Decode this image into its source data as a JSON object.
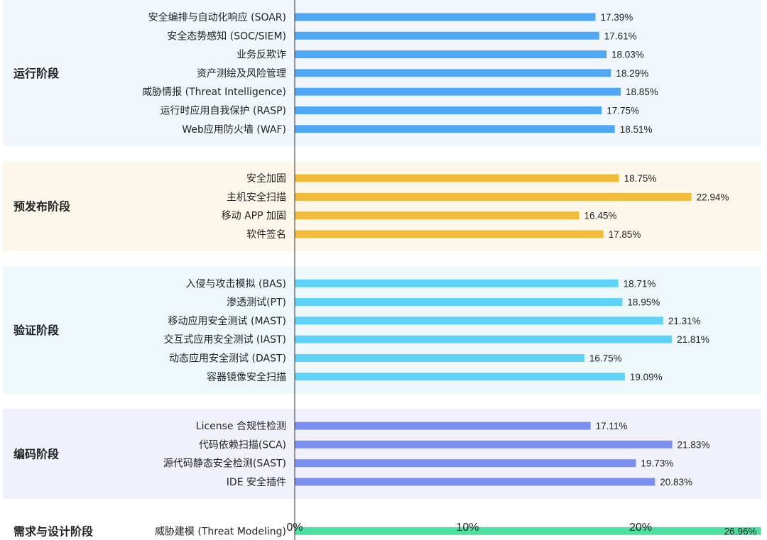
{
  "chart_data": {
    "type": "bar",
    "orientation": "horizontal",
    "title": "",
    "xlabel": "",
    "ylabel": "",
    "xlim": [
      0,
      27
    ],
    "x_ticks": [
      {
        "value": 0,
        "label": "0%"
      },
      {
        "value": 10,
        "label": "10%"
      },
      {
        "value": 20,
        "label": "20%"
      }
    ],
    "value_suffix": "%",
    "grid": false,
    "legend": "none",
    "groups": [
      {
        "name": "运行阶段",
        "band_color": "#f0f6fc",
        "bar_color": "#4ea8f5",
        "items": [
          {
            "label": "安全编排与自动化响应 (SOAR)",
            "value": 17.39
          },
          {
            "label": "安全态势感知 (SOC/SIEM)",
            "value": 17.61
          },
          {
            "label": "业务反欺诈",
            "value": 18.03
          },
          {
            "label": "资产测绘及风险管理",
            "value": 18.29
          },
          {
            "label": "威胁情报 (Threat Intelligence)",
            "value": 18.85
          },
          {
            "label": "运行时应用自我保护 (RASP)",
            "value": 17.75
          },
          {
            "label": "Web应用防火墙 (WAF)",
            "value": 18.51
          }
        ]
      },
      {
        "name": "预发布阶段",
        "band_color": "#fdf6ea",
        "bar_color": "#f2bc3a",
        "items": [
          {
            "label": "安全加固",
            "value": 18.75
          },
          {
            "label": "主机安全扫描",
            "value": 22.94
          },
          {
            "label": "移动 APP 加固",
            "value": 16.45
          },
          {
            "label": "软件签名",
            "value": 17.85
          }
        ]
      },
      {
        "name": "验证阶段",
        "band_color": "#eef8fb",
        "bar_color": "#5ed3f7",
        "items": [
          {
            "label": "入侵与攻击模拟 (BAS)",
            "value": 18.71
          },
          {
            "label": "渗透测试(PT)",
            "value": 18.95
          },
          {
            "label": "移动应用安全测试 (MAST)",
            "value": 21.31
          },
          {
            "label": "交互式应用安全测试 (IAST)",
            "value": 21.81
          },
          {
            "label": "动态应用安全测试 (DAST)",
            "value": 16.75
          },
          {
            "label": "容器镜像安全扫描",
            "value": 19.09
          }
        ]
      },
      {
        "name": "编码阶段",
        "band_color": "#f0f1fb",
        "bar_color": "#7b8ff0",
        "items": [
          {
            "label": "License 合规性检测",
            "value": 17.11
          },
          {
            "label": "代码依赖扫描(SCA)",
            "value": 21.83
          },
          {
            "label": "源代码静态安全检测(SAST)",
            "value": 19.73
          },
          {
            "label": "IDE 安全插件",
            "value": 20.83
          }
        ]
      },
      {
        "name": "需求与设计阶段",
        "band_color": "#ffffff",
        "bar_color": "#4ee0a0",
        "items": [
          {
            "label": "威胁建模 (Threat Modeling)",
            "value": 26.96
          }
        ]
      }
    ]
  }
}
